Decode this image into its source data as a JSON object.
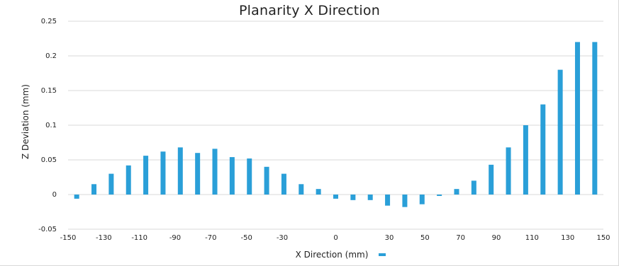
{
  "chart_data": {
    "type": "bar",
    "title": "Planarity X Direction",
    "xlabel": "X Direction (mm)",
    "ylabel": "Z Deviation (mm)",
    "ylim": [
      -0.05,
      0.25
    ],
    "grid": true,
    "legend": "inline after x-axis label",
    "bar_color": "#2a9fd8",
    "y_ticks": [
      "0.25",
      "0.2",
      "0.15",
      "0.1",
      "0.05",
      "0",
      "-0.05"
    ],
    "x_tick_labels": [
      "-150",
      "-130",
      "-110",
      "-90",
      "-70",
      "-50",
      "-30",
      "0",
      "30",
      "50",
      "70",
      "90",
      "110",
      "130",
      "150"
    ],
    "series": [
      {
        "x": [
          -150,
          -140,
          -130,
          -120,
          -110,
          -100,
          -90,
          -80,
          -70,
          -60,
          -50,
          -40,
          -30,
          -20,
          -10,
          0,
          10,
          20,
          30,
          40,
          50,
          60,
          70,
          80,
          90,
          100,
          110,
          120,
          130,
          140,
          150
        ],
        "values": [
          -0.006,
          0.015,
          0.03,
          0.042,
          0.056,
          0.062,
          0.068,
          0.06,
          0.066,
          0.054,
          0.052,
          0.04,
          0.03,
          0.015,
          0.008,
          -0.006,
          -0.008,
          -0.008,
          -0.016,
          -0.018,
          -0.014,
          -0.002,
          0.008,
          0.02,
          0.043,
          0.068,
          0.1,
          0.13,
          0.18,
          0.22,
          0.22
        ]
      }
    ]
  }
}
